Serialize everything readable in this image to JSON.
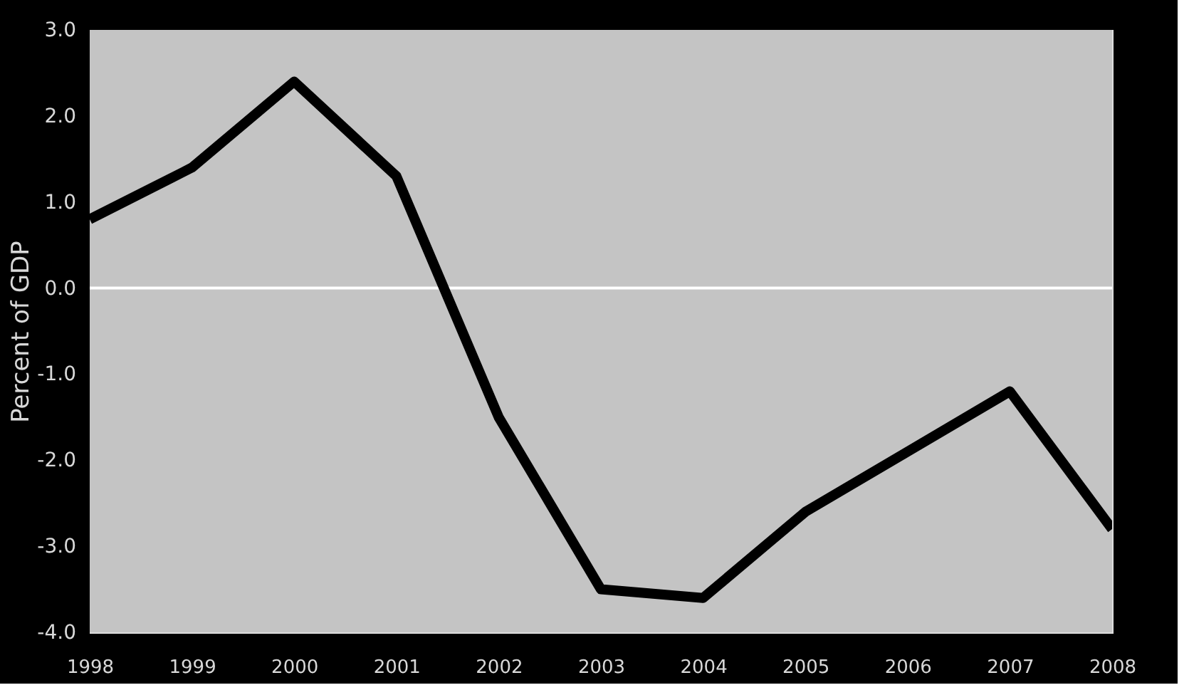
{
  "chart_data": {
    "type": "line",
    "ylabel": "Percent of GDP",
    "x": [
      1998,
      1999,
      2000,
      2001,
      2002,
      2003,
      2004,
      2005,
      2006,
      2007,
      2008
    ],
    "series": [
      {
        "color": "#000000",
        "values": [
          0.8,
          1.4,
          2.4,
          1.3,
          -1.5,
          -3.5,
          -3.6,
          -2.6,
          -1.9,
          -1.2,
          -2.8
        ]
      }
    ],
    "xlim": [
      1998,
      2008
    ],
    "xticks": [
      1998,
      1999,
      2000,
      2001,
      2002,
      2003,
      2004,
      2005,
      2006,
      2007,
      2008
    ],
    "ylim": [
      -4,
      3
    ],
    "yticks": [
      {
        "value": -4,
        "label": "-4.0"
      },
      {
        "value": -3,
        "label": "-3.0"
      },
      {
        "value": -2,
        "label": "-2.0"
      },
      {
        "value": -1,
        "label": "-1.0"
      },
      {
        "value": 0,
        "label": "0.0"
      },
      {
        "value": 1,
        "label": "1.0"
      },
      {
        "value": 2,
        "label": "2.0"
      },
      {
        "value": 3,
        "label": "3.0"
      }
    ],
    "ref_lines": [
      {
        "axis": "y",
        "value": 0,
        "label": null,
        "color": "#ffffff"
      }
    ],
    "marker": "none",
    "line_style": "solid"
  }
}
